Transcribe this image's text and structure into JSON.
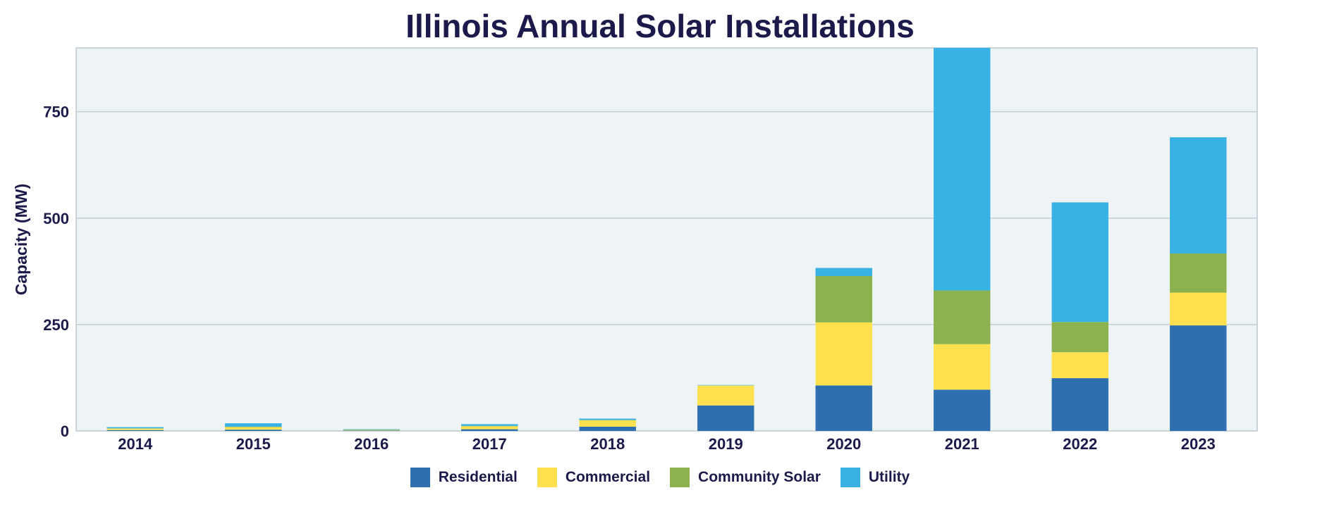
{
  "chart_data": {
    "type": "bar",
    "stacked": true,
    "title": "Illinois Annual Solar Installations",
    "xlabel": "",
    "ylabel": "Capacity (MW)",
    "ylim": [
      0,
      900
    ],
    "yticks": [
      0,
      250,
      500,
      750
    ],
    "grid": true,
    "legend_position": "bottom-center",
    "categories": [
      "2014",
      "2015",
      "2016",
      "2017",
      "2018",
      "2019",
      "2020",
      "2021",
      "2022",
      "2023"
    ],
    "series": [
      {
        "name": "Residential",
        "color": "#2e6fb0",
        "values": [
          2,
          3,
          1,
          4,
          10,
          60,
          107,
          97,
          124,
          248
        ]
      },
      {
        "name": "Commercial",
        "color": "#ffe14f",
        "values": [
          4,
          6,
          1,
          7,
          15,
          47,
          148,
          107,
          61,
          77
        ]
      },
      {
        "name": "Community Solar",
        "color": "#8bb24f",
        "values": [
          0,
          1,
          1,
          1,
          1,
          0,
          109,
          126,
          71,
          92
        ]
      },
      {
        "name": "Utility",
        "color": "#38b2e4",
        "values": [
          3,
          8,
          1,
          4,
          3,
          1,
          19,
          570,
          281,
          273
        ]
      }
    ]
  }
}
